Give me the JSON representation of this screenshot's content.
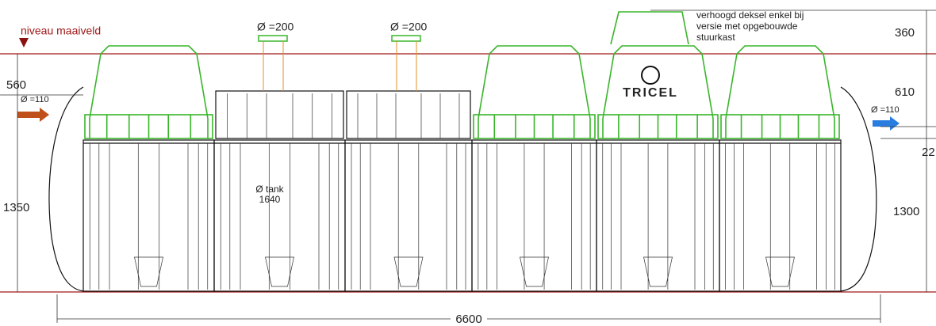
{
  "labels": {
    "ground_level": "niveau maaiveld",
    "riser_left": "Ø =200",
    "riser_right": "Ø =200",
    "note": {
      "lines": [
        "verhoogd deksel enkel bij",
        "versie met opgebouwde",
        "stuurkast"
      ]
    },
    "dim_right_top": "360",
    "dim_right_mid": "610",
    "dim_right_small": "22",
    "dim_right_body": "1300",
    "dim_left_top": "560",
    "dim_left_body": "1350",
    "inlet": "Ø =110",
    "outlet": "Ø =110",
    "tank_diameter": {
      "lines": [
        "Ø tank",
        "1640"
      ]
    },
    "brand": "TRICEL",
    "length": "6600"
  }
}
